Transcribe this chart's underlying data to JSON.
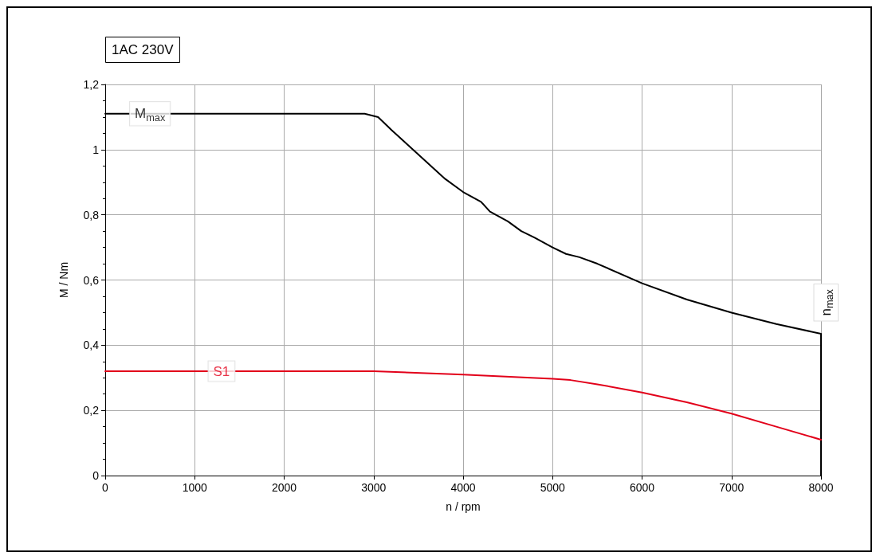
{
  "chart_data": {
    "type": "line",
    "title": "1AC 230V",
    "xlabel": "n / rpm",
    "ylabel": "M / Nm",
    "xlim": [
      0,
      8000
    ],
    "xticks": [
      0,
      1000,
      2000,
      3000,
      4000,
      5000,
      6000,
      7000,
      8000
    ],
    "ylim": [
      0,
      1.2
    ],
    "yticks": [
      0,
      {
        "value": 0.2,
        "label": "0,2"
      },
      {
        "value": 0.4,
        "label": "0,4"
      },
      {
        "value": 0.6,
        "label": "0,6"
      },
      {
        "value": 0.8,
        "label": "0,8"
      },
      1,
      {
        "value": 1.2,
        "label": "1,2"
      }
    ],
    "grid": true,
    "marker": "none",
    "line_style": "solid",
    "series": [
      {
        "color": "#000000",
        "x": [
          0,
          2900,
          3050,
          3200,
          3400,
          3600,
          3800,
          4000,
          4200,
          4300,
          4500,
          4650,
          4800,
          5000,
          5150,
          5300,
          5500,
          6000,
          6500,
          7000,
          7500,
          8000,
          8000
        ],
        "values": [
          1.11,
          1.11,
          1.1,
          1.06,
          1.01,
          0.96,
          0.91,
          0.87,
          0.84,
          0.81,
          0.78,
          0.75,
          0.73,
          0.7,
          0.68,
          0.67,
          0.65,
          0.59,
          0.54,
          0.5,
          0.465,
          0.435,
          0
        ]
      },
      {
        "color": "#e2001a",
        "x": [
          0,
          3000,
          4000,
          5000,
          5200,
          5500,
          6000,
          6500,
          7000,
          7500,
          8000
        ],
        "values": [
          0.32,
          0.32,
          0.31,
          0.297,
          0.293,
          0.28,
          0.255,
          0.225,
          0.19,
          0.15,
          0.11
        ]
      }
    ],
    "annotations": [
      {
        "text": "M$_{max}$",
        "x": 500,
        "y": 1.11
      },
      {
        "text": "S1",
        "x": 1300,
        "y": 0.32
      },
      "n$_{max}$"
    ]
  }
}
